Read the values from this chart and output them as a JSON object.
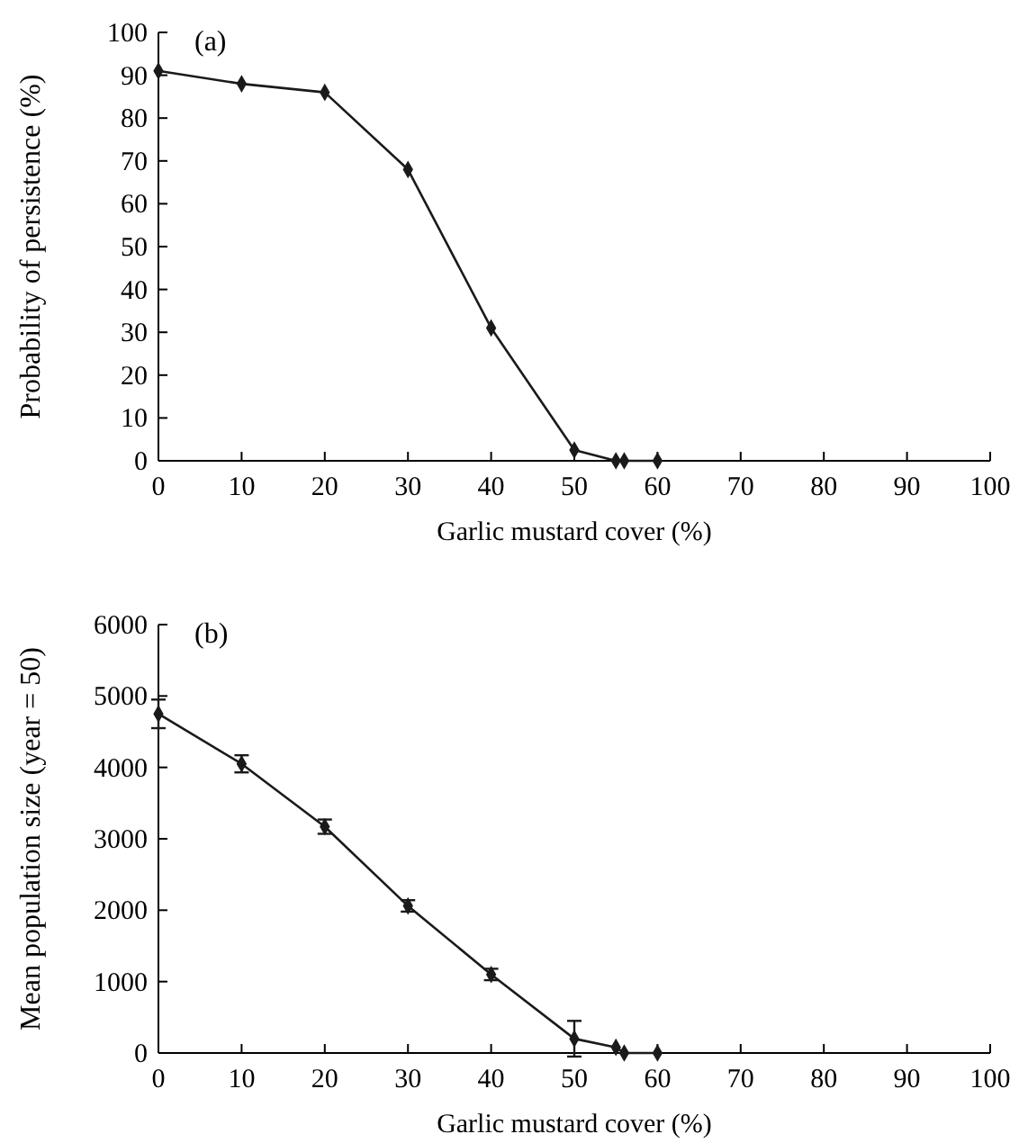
{
  "chart_data": [
    {
      "type": "line",
      "xlabel": "Garlic mustard cover (%)",
      "ylabel": "Probability of persistence (%)",
      "annotations": [
        "(a)"
      ],
      "marker": "diamond",
      "line_style": "solid",
      "grid": false,
      "xlim": [
        0,
        100
      ],
      "xticks": [
        0,
        10,
        20,
        30,
        40,
        50,
        60,
        70,
        80,
        90,
        100
      ],
      "ylim": [
        0,
        100
      ],
      "yticks": [
        0,
        10,
        20,
        30,
        40,
        50,
        60,
        70,
        80,
        90,
        100
      ],
      "series": [
        {
          "color": "#1a1a1a",
          "x": [
            0,
            10,
            20,
            30,
            40,
            50,
            55,
            56,
            60
          ],
          "values": [
            91,
            88,
            86,
            68,
            31,
            2.5,
            0,
            0,
            0
          ]
        }
      ]
    },
    {
      "type": "line",
      "xlabel": "Garlic mustard cover (%)",
      "ylabel": "Mean population size (year = 50)",
      "annotations": [
        "(b)"
      ],
      "marker": "diamond",
      "line_style": "solid",
      "grid": false,
      "xlim": [
        0,
        100
      ],
      "xticks": [
        0,
        10,
        20,
        30,
        40,
        50,
        60,
        70,
        80,
        90,
        100
      ],
      "ylim": [
        0,
        6000
      ],
      "yticks": [
        0,
        1000,
        2000,
        3000,
        4000,
        5000,
        6000
      ],
      "series": [
        {
          "color": "#1a1a1a",
          "x": [
            0,
            10,
            20,
            30,
            40,
            50,
            55,
            56,
            60
          ],
          "values": [
            4750,
            4050,
            3170,
            2060,
            1100,
            200,
            80,
            0,
            0
          ],
          "errors": [
            200,
            120,
            100,
            80,
            80,
            250,
            null,
            null,
            null
          ]
        }
      ]
    }
  ]
}
